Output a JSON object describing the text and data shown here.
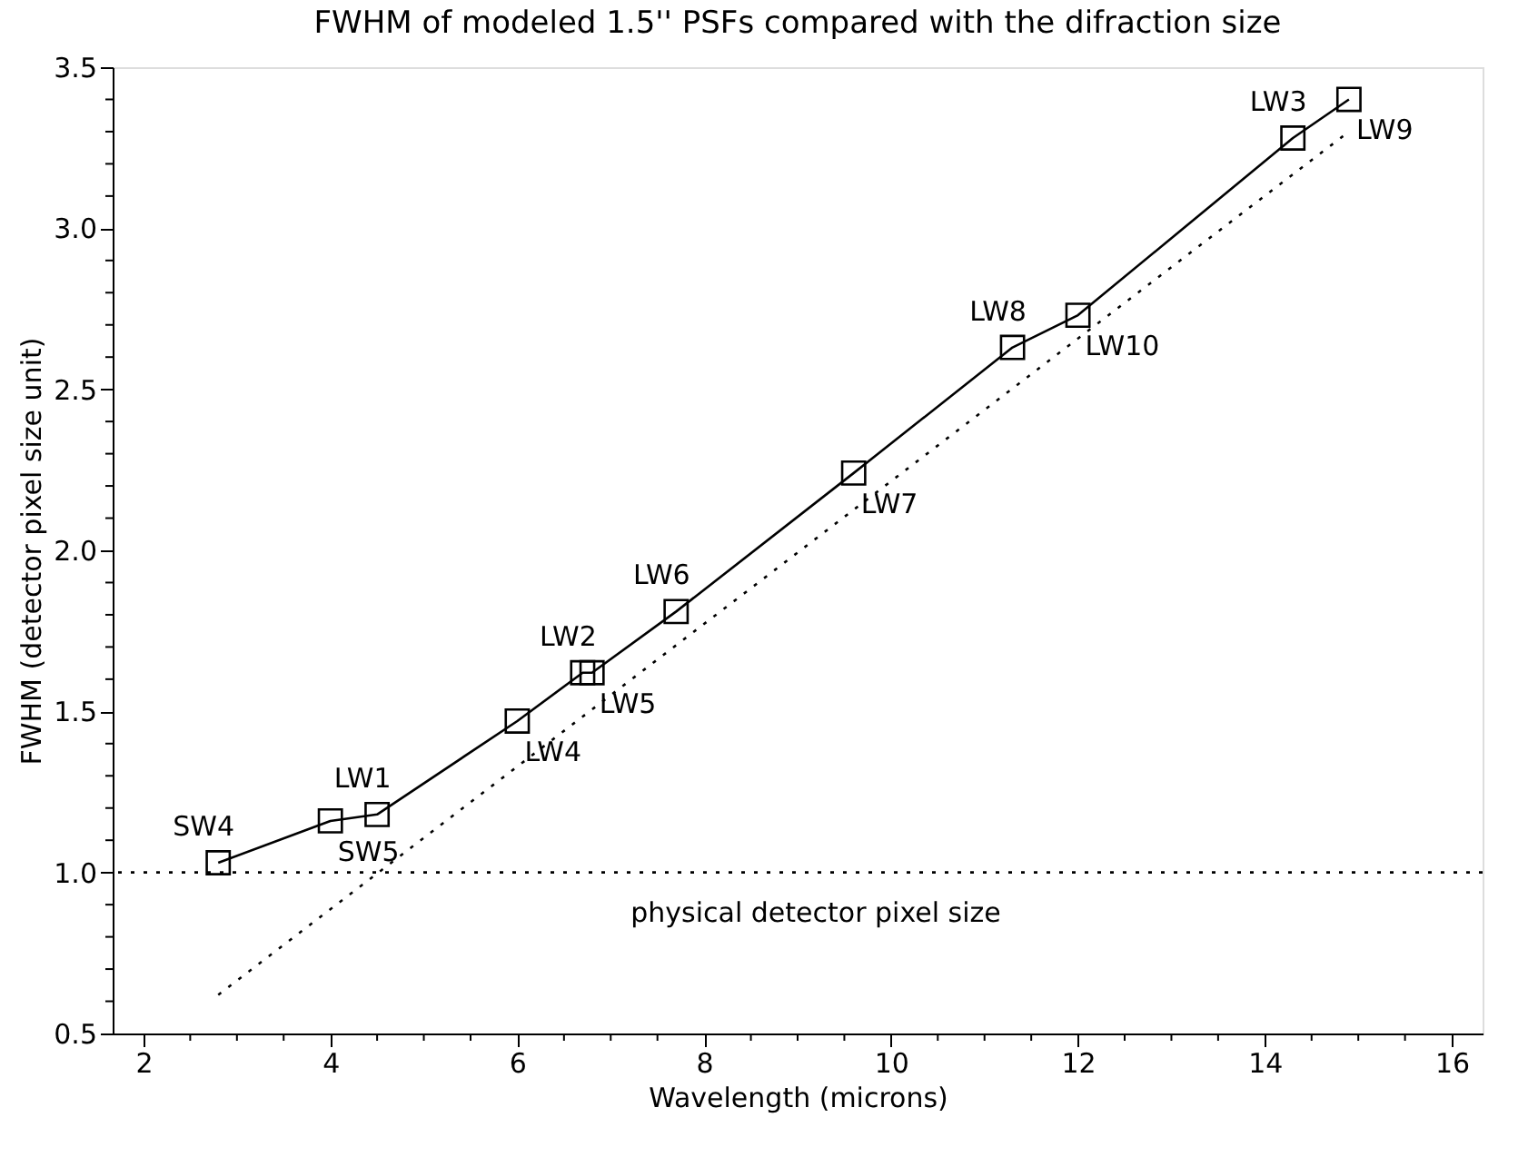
{
  "chart_data": {
    "type": "line",
    "title": "FWHM of modeled 1.5'' PSFs compared with the difraction size",
    "xlabel": "Wavelength (microns)",
    "ylabel": "FWHM (detector pixel size unit)",
    "series": [
      {
        "color": "#000000",
        "marker": "square",
        "line_style": "solid",
        "x": [
          2.8,
          4.0,
          4.5,
          6.0,
          6.7,
          6.8,
          7.7,
          9.6,
          11.3,
          12.0,
          14.3,
          14.9
        ],
        "values": [
          1.03,
          1.16,
          1.18,
          1.47,
          1.62,
          1.62,
          1.81,
          2.24,
          2.63,
          2.73,
          3.28,
          3.4
        ]
      },
      {
        "color": "#000000",
        "marker": "none",
        "line_style": "dotted",
        "x": [
          2.8,
          14.9
        ],
        "values": [
          0.62,
          3.3
        ]
      }
    ],
    "xlim": [
      1.67,
      16.33
    ],
    "ylim": [
      0.5,
      3.5
    ],
    "xticks": [
      2,
      {
        "value": 2.5,
        "label": null
      },
      {
        "value": 3,
        "label": null
      },
      {
        "value": 3.5,
        "label": null
      },
      4,
      {
        "value": 4.5,
        "label": null
      },
      {
        "value": 5,
        "label": null
      },
      {
        "value": 5.5,
        "label": null
      },
      6,
      {
        "value": 6.5,
        "label": null
      },
      {
        "value": 7,
        "label": null
      },
      {
        "value": 7.5,
        "label": null
      },
      8,
      {
        "value": 8.5,
        "label": null
      },
      {
        "value": 9,
        "label": null
      },
      {
        "value": 9.5,
        "label": null
      },
      10,
      {
        "value": 10.5,
        "label": null
      },
      {
        "value": 11,
        "label": null
      },
      {
        "value": 11.5,
        "label": null
      },
      12,
      {
        "value": 12.5,
        "label": null
      },
      {
        "value": 13,
        "label": null
      },
      {
        "value": 13.5,
        "label": null
      },
      14,
      {
        "value": 14.5,
        "label": null
      },
      {
        "value": 15,
        "label": null
      },
      {
        "value": 15.5,
        "label": null
      },
      16
    ],
    "yticks": [
      {
        "value": 0.5,
        "label": "0.5"
      },
      {
        "value": 0.6,
        "label": null
      },
      {
        "value": 0.7,
        "label": null
      },
      {
        "value": 0.8,
        "label": null
      },
      {
        "value": 0.9,
        "label": null
      },
      {
        "value": 1.0,
        "label": "1.0"
      },
      {
        "value": 1.1,
        "label": null
      },
      {
        "value": 1.2,
        "label": null
      },
      {
        "value": 1.3,
        "label": null
      },
      {
        "value": 1.4,
        "label": null
      },
      {
        "value": 1.5,
        "label": "1.5"
      },
      {
        "value": 1.6,
        "label": null
      },
      {
        "value": 1.7,
        "label": null
      },
      {
        "value": 1.8,
        "label": null
      },
      {
        "value": 1.9,
        "label": null
      },
      {
        "value": 2.0,
        "label": "2.0"
      },
      {
        "value": 2.1,
        "label": null
      },
      {
        "value": 2.2,
        "label": null
      },
      {
        "value": 2.3,
        "label": null
      },
      {
        "value": 2.4,
        "label": null
      },
      {
        "value": 2.5,
        "label": "2.5"
      },
      {
        "value": 2.6,
        "label": null
      },
      {
        "value": 2.7,
        "label": null
      },
      {
        "value": 2.8,
        "label": null
      },
      {
        "value": 2.9,
        "label": null
      },
      {
        "value": 3.0,
        "label": "3.0"
      },
      {
        "value": 3.1,
        "label": null
      },
      {
        "value": 3.2,
        "label": null
      },
      {
        "value": 3.3,
        "label": null
      },
      {
        "value": 3.4,
        "label": null
      },
      {
        "value": 3.5,
        "label": "3.5"
      }
    ],
    "ref_lines": [
      {
        "axis": "y",
        "value": 1.0,
        "label": "physical detector pixel size",
        "line_style": "dotted",
        "color": "#000000"
      }
    ],
    "annotations": [
      {
        "text": "SW4",
        "x": 2.8,
        "y": 1.03
      },
      {
        "text": "LW1",
        "x": 4.5,
        "y": 1.18
      },
      {
        "text": "SW5",
        "x": 4.0,
        "y": 1.16
      },
      {
        "text": "LW4",
        "x": 6.0,
        "y": 1.47
      },
      {
        "text": "LW2",
        "x": 6.7,
        "y": 1.62
      },
      {
        "text": "LW5",
        "x": 6.8,
        "y": 1.62
      },
      {
        "text": "LW6",
        "x": 7.7,
        "y": 1.81
      },
      {
        "text": "LW7",
        "x": 9.6,
        "y": 2.24
      },
      {
        "text": "LW8",
        "x": 11.3,
        "y": 2.63
      },
      {
        "text": "LW10",
        "x": 12.0,
        "y": 2.73
      },
      {
        "text": "LW3",
        "x": 14.3,
        "y": 3.28
      },
      {
        "text": "LW9",
        "x": 14.9,
        "y": 3.4
      }
    ],
    "grid": false
  }
}
